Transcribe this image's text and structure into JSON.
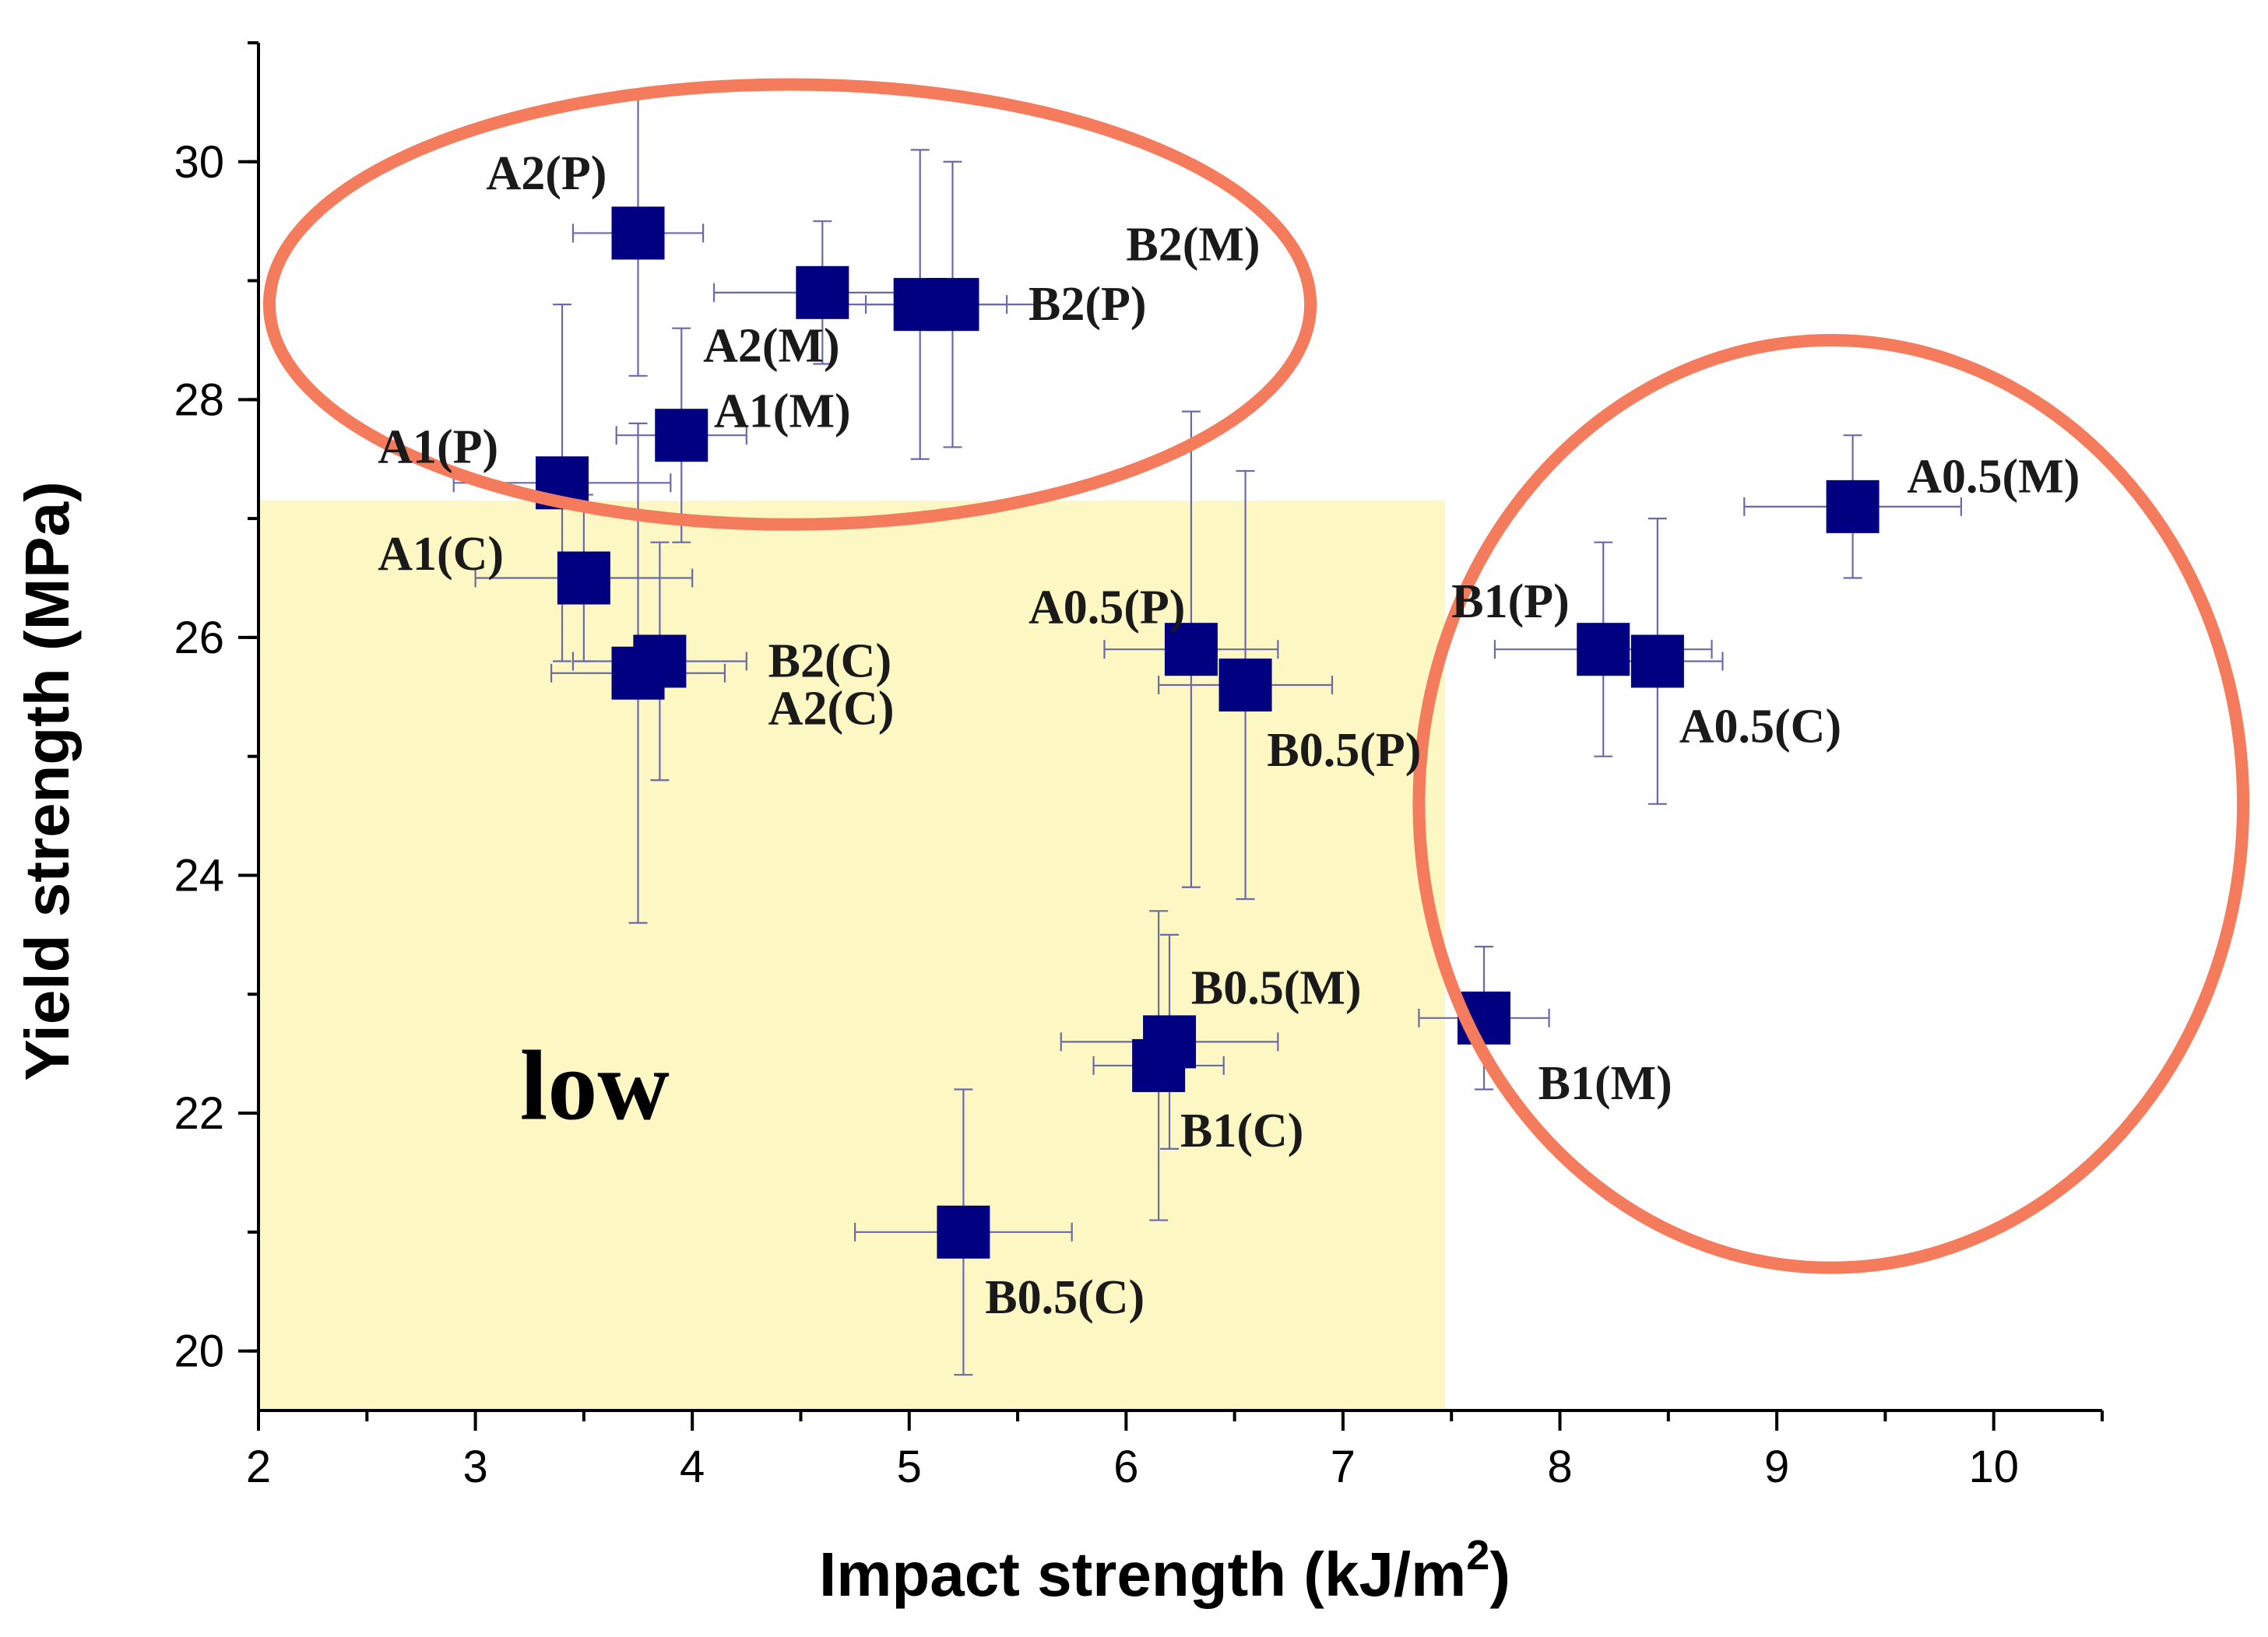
{
  "chart_data": {
    "type": "scatter",
    "xlabel": "Impact strength (kJ/m",
    "xlabel_sup": "2",
    "xlabel_close": ")",
    "ylabel": "Yield strength (MPa)",
    "xlim": [
      2,
      10.5
    ],
    "ylim": [
      19.5,
      31
    ],
    "x_ticks": [
      2,
      3,
      4,
      5,
      6,
      7,
      8,
      9,
      10
    ],
    "y_ticks": [
      20,
      22,
      24,
      26,
      28,
      30
    ],
    "x_tick_labels": [
      "2",
      "3",
      "4",
      "5",
      "6",
      "7",
      "8",
      "9",
      "10"
    ],
    "y_tick_labels": [
      "20",
      "22",
      "24",
      "26",
      "28",
      "30"
    ],
    "x_minor_step": 0.5,
    "y_minor_step": 1,
    "colors": {
      "marker": "#000080",
      "errorbar": "#6a6aa8",
      "ellipse": "#f47c5c",
      "region_fill": "#fdf7c3"
    },
    "low_region": {
      "x": [
        2,
        7.47
      ],
      "y": [
        19.5,
        27.15
      ],
      "label": "low"
    },
    "ellipses": [
      {
        "name": "top-left",
        "cx": 4.45,
        "cy": 28.8,
        "rx": 2.4,
        "ry": 1.85
      },
      {
        "name": "right",
        "cx": 9.25,
        "cy": 24.6,
        "rx": 1.9,
        "ry": 3.9
      }
    ],
    "points": [
      {
        "label": "A2(P)",
        "x": 3.75,
        "y": 29.4,
        "xerr": 0.3,
        "yerr": 1.2,
        "label_dx": -0.7,
        "label_dy": 0.5
      },
      {
        "label": "A2(M)",
        "x": 4.6,
        "y": 28.9,
        "xerr": 0.5,
        "yerr": 0.6,
        "label_dx": -0.55,
        "label_dy": -0.45
      },
      {
        "label": "B2(M)",
        "x": 5.05,
        "y": 28.8,
        "xerr": 0.4,
        "yerr": 1.3,
        "label_dx": 0.95,
        "label_dy": 0.5
      },
      {
        "label": "B2(P)",
        "x": 5.2,
        "y": 28.8,
        "xerr": 0.4,
        "yerr": 1.2,
        "label_dx": 0.35,
        "label_dy": 0.0
      },
      {
        "label": "A1(M)",
        "x": 3.95,
        "y": 27.7,
        "xerr": 0.3,
        "yerr": 0.9,
        "label_dx": 0.15,
        "label_dy": 0.2
      },
      {
        "label": "A1(P)",
        "x": 3.4,
        "y": 27.3,
        "xerr": 0.5,
        "yerr": 1.5,
        "label_dx": -0.85,
        "label_dy": 0.3
      },
      {
        "label": "A1(C)",
        "x": 3.5,
        "y": 26.5,
        "xerr": 0.5,
        "yerr": 0.7,
        "label_dx": -0.95,
        "label_dy": 0.2
      },
      {
        "label": "B2(C)",
        "x": 3.85,
        "y": 25.8,
        "xerr": 0.4,
        "yerr": 1.0,
        "label_dx": 0.5,
        "label_dy": 0.0
      },
      {
        "label": "A2(C)",
        "x": 3.75,
        "y": 25.7,
        "xerr": 0.4,
        "yerr": 2.1,
        "label_dx": 0.6,
        "label_dy": -0.3
      },
      {
        "label": "A0.5(P)",
        "x": 6.3,
        "y": 25.9,
        "xerr": 0.4,
        "yerr": 2.0,
        "label_dx": -0.75,
        "label_dy": 0.35
      },
      {
        "label": "B0.5(P)",
        "x": 6.55,
        "y": 25.6,
        "xerr": 0.4,
        "yerr": 1.8,
        "label_dx": 0.1,
        "label_dy": -0.55
      },
      {
        "label": "B0.5(M)",
        "x": 6.2,
        "y": 22.6,
        "xerr": 0.5,
        "yerr": 0.9,
        "label_dx": 0.1,
        "label_dy": 0.45
      },
      {
        "label": "B1(C)",
        "x": 6.15,
        "y": 22.4,
        "xerr": 0.3,
        "yerr": 1.3,
        "label_dx": 0.1,
        "label_dy": -0.55
      },
      {
        "label": "B0.5(C)",
        "x": 5.25,
        "y": 21.0,
        "xerr": 0.5,
        "yerr": 1.2,
        "label_dx": 0.1,
        "label_dy": -0.55
      },
      {
        "label": "A0.5(M)",
        "x": 9.35,
        "y": 27.1,
        "xerr": 0.5,
        "yerr": 0.6,
        "label_dx": 0.25,
        "label_dy": 0.25
      },
      {
        "label": "B1(P)",
        "x": 8.2,
        "y": 25.9,
        "xerr": 0.5,
        "yerr": 0.9,
        "label_dx": -0.7,
        "label_dy": 0.4
      },
      {
        "label": "A0.5(C)",
        "x": 8.45,
        "y": 25.8,
        "xerr": 0.3,
        "yerr": 1.2,
        "label_dx": 0.1,
        "label_dy": -0.55
      },
      {
        "label": "B1(M)",
        "x": 7.65,
        "y": 22.8,
        "xerr": 0.3,
        "yerr": 0.6,
        "label_dx": 0.25,
        "label_dy": -0.55
      }
    ]
  }
}
